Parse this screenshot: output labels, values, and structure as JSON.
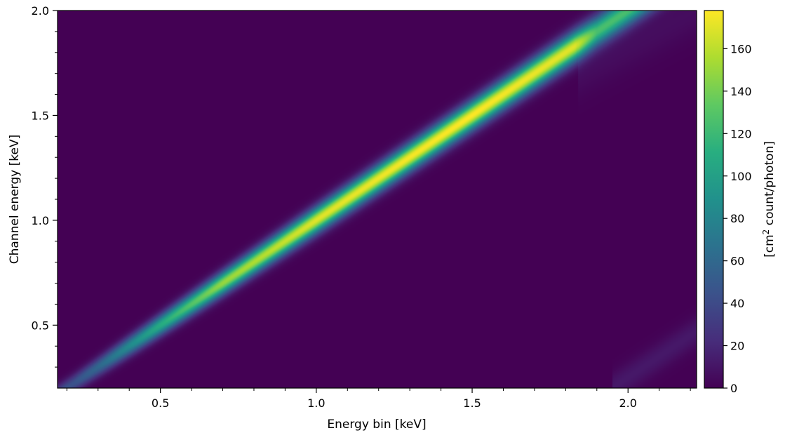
{
  "chart_data": {
    "type": "heatmap",
    "title": "",
    "xlabel": "Energy bin [keV]",
    "ylabel": "Channel energy [keV]",
    "xlim": [
      0.17,
      2.22
    ],
    "ylim": [
      0.2,
      2.0
    ],
    "x_ticks": [
      0.5,
      1.0,
      1.5,
      2.0
    ],
    "x_tick_labels": [
      "0.5",
      "1.0",
      "1.5",
      "2.0"
    ],
    "x_minor_ticks": [
      0.2,
      0.3,
      0.4,
      0.6,
      0.7,
      0.8,
      0.9,
      1.1,
      1.2,
      1.3,
      1.4,
      1.6,
      1.7,
      1.8,
      1.9,
      2.1,
      2.2
    ],
    "y_ticks": [
      0.5,
      1.0,
      1.5,
      2.0
    ],
    "y_tick_labels": [
      "0.5",
      "1.0",
      "1.5",
      "2.0"
    ],
    "y_minor_ticks": [
      0.3,
      0.4,
      0.6,
      0.7,
      0.8,
      0.9,
      1.1,
      1.2,
      1.3,
      1.4,
      1.6,
      1.7,
      1.8,
      1.9
    ],
    "colorbar": {
      "label_prefix": "[cm",
      "label_sup": "2",
      "label_suffix": " count/photon]",
      "range": [
        0,
        178
      ],
      "ticks": [
        0,
        20,
        40,
        60,
        80,
        100,
        120,
        140,
        160
      ],
      "tick_labels": [
        "0",
        "20",
        "40",
        "60",
        "80",
        "100",
        "120",
        "140",
        "160"
      ],
      "colormap": "viridis"
    },
    "background_value": 0,
    "main_ridge": {
      "description_of_peak_profile": [
        {
          "energy_bin": 0.22,
          "channel_energy": 0.22,
          "peak": 45
        },
        {
          "energy_bin": 0.3,
          "channel_energy": 0.3,
          "peak": 60
        },
        {
          "energy_bin": 0.5,
          "channel_energy": 0.5,
          "peak": 110
        },
        {
          "energy_bin": 0.7,
          "channel_energy": 0.7,
          "peak": 150
        },
        {
          "energy_bin": 1.0,
          "channel_energy": 1.0,
          "peak": 170
        },
        {
          "energy_bin": 1.3,
          "channel_energy": 1.3,
          "peak": 176
        },
        {
          "energy_bin": 1.5,
          "channel_energy": 1.5,
          "peak": 178
        },
        {
          "energy_bin": 1.83,
          "channel_energy": 1.83,
          "peak": 170
        },
        {
          "energy_bin": 1.9,
          "channel_energy": 1.9,
          "peak": 125
        },
        {
          "energy_bin": 2.1,
          "channel_energy": 2.1,
          "peak": 125
        }
      ],
      "width_keV": [
        {
          "energy_bin": 0.2,
          "fwhm": 0.07
        },
        {
          "energy_bin": 1.0,
          "fwhm": 0.1
        },
        {
          "energy_bin": 2.0,
          "fwhm": 0.12
        }
      ]
    },
    "edge_steps_keV": [
      0.28,
      0.4,
      0.535,
      1.84
    ],
    "secondary_ridge": {
      "x_start": 1.95,
      "y_start": 0.2,
      "x_end": 2.22,
      "y_end": 0.47,
      "peak": 12
    },
    "faint_shoulder": {
      "x_start": 1.84,
      "y_start": 1.7,
      "x_end": 2.22,
      "y_end": 2.0,
      "peak": 6
    }
  }
}
